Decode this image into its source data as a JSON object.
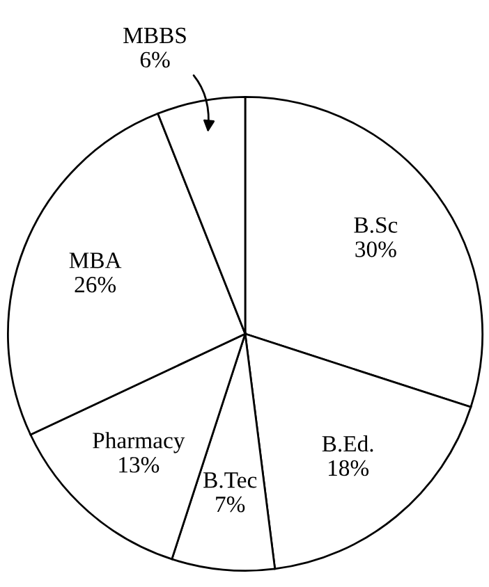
{
  "chart_data": {
    "type": "pie",
    "categories": [
      "B.Sc",
      "B.Ed.",
      "B.Tec",
      "Pharmacy",
      "MBA",
      "MBBS"
    ],
    "values": [
      30,
      18,
      7,
      13,
      26,
      6
    ],
    "value_labels": [
      "30%",
      "18%",
      "7%",
      "13%",
      "26%",
      "6%"
    ],
    "colors": [
      "#ffffff",
      "#ffffff",
      "#ffffff",
      "#ffffff",
      "#ffffff",
      "#ffffff"
    ],
    "legend": false
  }
}
